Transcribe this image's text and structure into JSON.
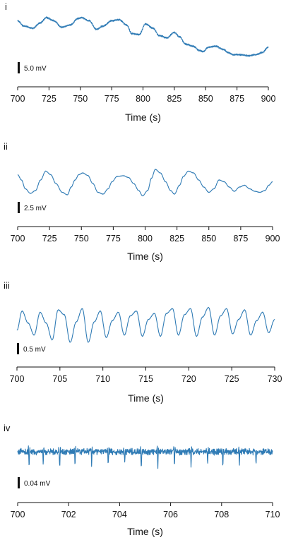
{
  "colors": {
    "trace": "#2f7bb5",
    "axis": "#111111",
    "scalebar": "#111111"
  },
  "chart_data": [
    {
      "type": "line",
      "panel_label": "i",
      "xlabel": "Time (s)",
      "ylabel": "",
      "xlim": [
        700,
        900
      ],
      "xticks": [
        700,
        725,
        750,
        775,
        800,
        825,
        850,
        875,
        900
      ],
      "scale_bar": {
        "label": "5.0 mV",
        "value_mV": 5.0
      },
      "series": [
        {
          "values_mV": {
            "x": [
              700,
              705,
              712,
              718,
              723,
              729,
              735,
              742,
              748,
              751,
              757,
              763,
              768,
              775,
              781,
              787,
              791,
              797,
              802,
              808,
              813,
              819,
              825,
              829,
              834,
              840,
              845,
              848,
              852,
              858,
              864,
              868,
              872,
              878,
              884,
              890,
              895,
              900
            ],
            "y": [
              8.5,
              6.0,
              5.0,
              7.5,
              10.0,
              8.5,
              5.5,
              6.5,
              9.5,
              10.0,
              8.5,
              4.5,
              6.0,
              8.5,
              9.0,
              6.5,
              2.5,
              2.0,
              7.0,
              5.0,
              1.5,
              0.5,
              3.0,
              1.0,
              -2.5,
              -3.5,
              -5.5,
              -6.0,
              -4.0,
              -3.5,
              -5.0,
              -6.5,
              -7.5,
              -7.5,
              -8.0,
              -7.5,
              -6.5,
              -4.0
            ]
          },
          "ripple_mV": 0.35
        }
      ]
    },
    {
      "type": "line",
      "panel_label": "ii",
      "xlabel": "Time (s)",
      "ylabel": "",
      "xlim": [
        700,
        900
      ],
      "xticks": [
        700,
        725,
        750,
        775,
        800,
        825,
        850,
        875,
        900
      ],
      "scale_bar": {
        "label": "2.5 mV",
        "value_mV": 2.5
      },
      "series": [
        {
          "values_mV": {
            "x": [
              700,
              703,
              706,
              710,
              714,
              718,
              722,
              726,
              730,
              735,
              739,
              742,
              745,
              748,
              751,
              755,
              759,
              763,
              767,
              771,
              774,
              778,
              783,
              787,
              791,
              795,
              798,
              802,
              805,
              808,
              812,
              816,
              820,
              823,
              827,
              830,
              834,
              838,
              842,
              846,
              850,
              854,
              858,
              862,
              866,
              870,
              874,
              878,
              882,
              886,
              890,
              894,
              897,
              900
            ],
            "y": [
              0.5,
              -1.0,
              -3.5,
              -4.8,
              -4.0,
              -1.0,
              1.5,
              0.5,
              -2.0,
              -4.5,
              -5.2,
              -3.0,
              -1.0,
              0.5,
              1.0,
              0.3,
              -2.0,
              -4.5,
              -5.0,
              -3.5,
              -1.5,
              0.0,
              0.2,
              -0.3,
              -2.0,
              -4.0,
              -5.5,
              -4.0,
              -0.5,
              2.0,
              1.0,
              -1.5,
              -4.0,
              -5.0,
              -2.5,
              0.0,
              1.5,
              1.0,
              -1.0,
              -3.0,
              -4.5,
              -3.5,
              -1.0,
              -1.5,
              -3.0,
              -4.2,
              -3.0,
              -2.5,
              -3.5,
              -4.2,
              -4.5,
              -4.0,
              -2.5,
              -1.5
            ]
          },
          "ripple_mV": 0.05
        }
      ]
    },
    {
      "type": "line",
      "panel_label": "iii",
      "xlabel": "Time (s)",
      "ylabel": "",
      "xlim": [
        700,
        730
      ],
      "xticks": [
        700,
        705,
        710,
        715,
        720,
        725,
        730
      ],
      "scale_bar": {
        "label": "0.5 mV",
        "value_mV": 0.5
      },
      "series": [
        {
          "values_mV": {
            "x": [
              700,
              700.6,
              701.3,
              702.0,
              702.7,
              703.4,
              704.1,
              704.8,
              705.5,
              706.2,
              706.9,
              707.6,
              708.3,
              709.0,
              709.7,
              710.4,
              711.1,
              711.8,
              712.5,
              713.2,
              713.9,
              714.6,
              715.3,
              716.0,
              716.7,
              717.4,
              718.1,
              718.8,
              719.5,
              720.2,
              720.9,
              721.6,
              722.3,
              723.0,
              723.7,
              724.4,
              725.1,
              725.8,
              726.5,
              727.2,
              727.9,
              728.6,
              729.3,
              730.0
            ],
            "y": [
              -0.35,
              0.45,
              -0.05,
              -0.55,
              0.4,
              -0.05,
              -0.75,
              0.5,
              0.3,
              -0.85,
              0.0,
              0.55,
              -0.85,
              0.0,
              0.45,
              -0.65,
              0.05,
              0.4,
              -0.55,
              0.25,
              0.45,
              -0.6,
              0.1,
              0.35,
              -0.6,
              0.35,
              0.55,
              -0.55,
              0.3,
              0.55,
              -0.6,
              0.2,
              0.6,
              -0.55,
              0.25,
              0.55,
              -0.5,
              0.1,
              0.5,
              -0.55,
              0.05,
              0.4,
              -0.45,
              0.1
            ]
          },
          "ripple_mV": 0.01
        }
      ]
    },
    {
      "type": "line",
      "panel_label": "iv",
      "xlabel": "Time (s)",
      "ylabel": "",
      "xlim": [
        700,
        710
      ],
      "xticks": [
        700,
        702,
        704,
        706,
        708,
        710
      ],
      "scale_bar": {
        "label": "0.04 mV",
        "value_mV": 0.04
      },
      "series": [
        {
          "baseline_mV": 0.0,
          "noise_mV": 0.006,
          "spikes": {
            "t": [
              700.45,
              701.0,
              701.65,
              702.25,
              702.9,
              703.55,
              704.2,
              704.85,
              705.5,
              706.15,
              706.8,
              707.45,
              708.05,
              708.7,
              709.35
            ],
            "amplitude_mV": [
              -0.03,
              -0.025,
              -0.038,
              -0.034,
              -0.028,
              -0.032,
              -0.024,
              -0.036,
              -0.03,
              -0.025,
              -0.028,
              -0.026,
              -0.032,
              -0.022,
              -0.027
            ]
          }
        }
      ]
    }
  ]
}
